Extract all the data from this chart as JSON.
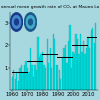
{
  "title": "annual mean growth rate of CO₂ at Mauna Lo",
  "background_color": "#a8d8df",
  "bar_color": "#00dede",
  "bar_edge_color": "#00aaaa",
  "years": [
    1960,
    1961,
    1962,
    1963,
    1964,
    1965,
    1966,
    1967,
    1968,
    1969,
    1970,
    1971,
    1972,
    1973,
    1974,
    1975,
    1976,
    1977,
    1978,
    1979,
    1980,
    1981,
    1982,
    1983,
    1984,
    1985,
    1986,
    1987,
    1988,
    1989,
    1990,
    1991,
    1992,
    1993,
    1994,
    1995,
    1996,
    1997,
    1998,
    1999,
    2000,
    2001,
    2002,
    2003,
    2004,
    2005,
    2006,
    2007,
    2008,
    2009,
    2010,
    2011,
    2012,
    2013,
    2014,
    2015
  ],
  "values": [
    0.6,
    0.9,
    0.5,
    0.8,
    0.4,
    1.0,
    1.1,
    0.8,
    1.1,
    1.3,
    1.0,
    0.8,
    1.9,
    1.1,
    0.6,
    1.1,
    0.9,
    2.4,
    1.5,
    1.6,
    1.7,
    1.1,
    1.0,
    2.3,
    1.2,
    1.9,
    1.0,
    2.5,
    2.3,
    1.1,
    1.1,
    0.9,
    0.5,
    1.5,
    1.9,
    2.0,
    1.2,
    2.2,
    2.9,
    1.0,
    1.7,
    1.6,
    2.5,
    2.3,
    1.6,
    2.5,
    1.7,
    2.2,
    1.6,
    1.9,
    2.4,
    1.9,
    2.7,
    2.8,
    2.1,
    3.0
  ],
  "decade_means": [
    {
      "start": 1959.5,
      "end": 1969.5,
      "value": 0.8
    },
    {
      "start": 1969.5,
      "end": 1979.5,
      "value": 1.3
    },
    {
      "start": 1979.5,
      "end": 1989.5,
      "value": 1.6
    },
    {
      "start": 1989.5,
      "end": 1999.5,
      "value": 1.5
    },
    {
      "start": 1999.5,
      "end": 2009.5,
      "value": 2.0
    },
    {
      "start": 2009.5,
      "end": 2015.5,
      "value": 2.4
    }
  ],
  "xlim": [
    1958.5,
    2016.5
  ],
  "ylim": [
    0,
    3.5
  ],
  "yticks": [
    1,
    2,
    3
  ],
  "xticks": [
    1960,
    1970,
    1980,
    1990,
    2000,
    2010
  ],
  "tick_fontsize": 3.8,
  "title_fontsize": 3.2,
  "logo1_color_outer": "#1a3a8a",
  "logo1_color_inner": "#4488cc",
  "logo2_color_outer": "#1a5a8a",
  "logo2_color_inner": "#44aacc"
}
